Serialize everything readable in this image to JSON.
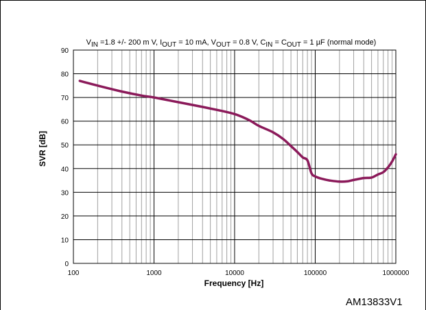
{
  "chart_data": {
    "type": "line",
    "title_parts": [
      {
        "text": "V",
        "sub": false
      },
      {
        "text": "IN",
        "sub": true
      },
      {
        "text": " =1.8 +/- 200 m V, I",
        "sub": false
      },
      {
        "text": "OUT",
        "sub": true
      },
      {
        "text": "  = 10 mA, V",
        "sub": false
      },
      {
        "text": "OUT",
        "sub": true
      },
      {
        "text": "  = 0.8 V,  C",
        "sub": false
      },
      {
        "text": "IN",
        "sub": true
      },
      {
        "text": " = C",
        "sub": false
      },
      {
        "text": "OUT",
        "sub": true
      },
      {
        "text": " = 1 µF (normal mode)",
        "sub": false
      }
    ],
    "xlabel": "Frequency [Hz]",
    "ylabel": "SVR  [dB]",
    "xscale": "log",
    "xlim": [
      100,
      1000000
    ],
    "ylim": [
      0,
      90
    ],
    "xticks": [
      100,
      1000,
      10000,
      100000,
      1000000
    ],
    "xtick_labels": [
      "100",
      "1000",
      "10000",
      "100000",
      "1000000"
    ],
    "yticks": [
      0,
      10,
      20,
      30,
      40,
      50,
      60,
      70,
      80,
      90
    ],
    "ytick_labels": [
      "0",
      "10",
      "20",
      "30",
      "40",
      "50",
      "60",
      "70",
      "80",
      "90"
    ],
    "grid": true,
    "series": [
      {
        "color": "#8b1a5a",
        "x": [
          120,
          200,
          400,
          700,
          1000,
          2000,
          4000,
          7000,
          10000,
          13000,
          16000,
          20000,
          30000,
          40000,
          50000,
          60000,
          70000,
          80000,
          90000,
          100000,
          120000,
          150000,
          200000,
          250000,
          300000,
          400000,
          500000,
          600000,
          700000,
          800000,
          900000,
          1000000
        ],
        "y": [
          77,
          75,
          72.5,
          70.8,
          70,
          68,
          66,
          64.3,
          63,
          61.5,
          60,
          58,
          55.3,
          52.5,
          49.5,
          47,
          44.7,
          43.5,
          38,
          36.7,
          35.7,
          35,
          34.5,
          34.6,
          35.2,
          36,
          36.2,
          37.5,
          38.5,
          40.5,
          43,
          46
        ]
      }
    ]
  },
  "figure_id": "AM13833V1"
}
